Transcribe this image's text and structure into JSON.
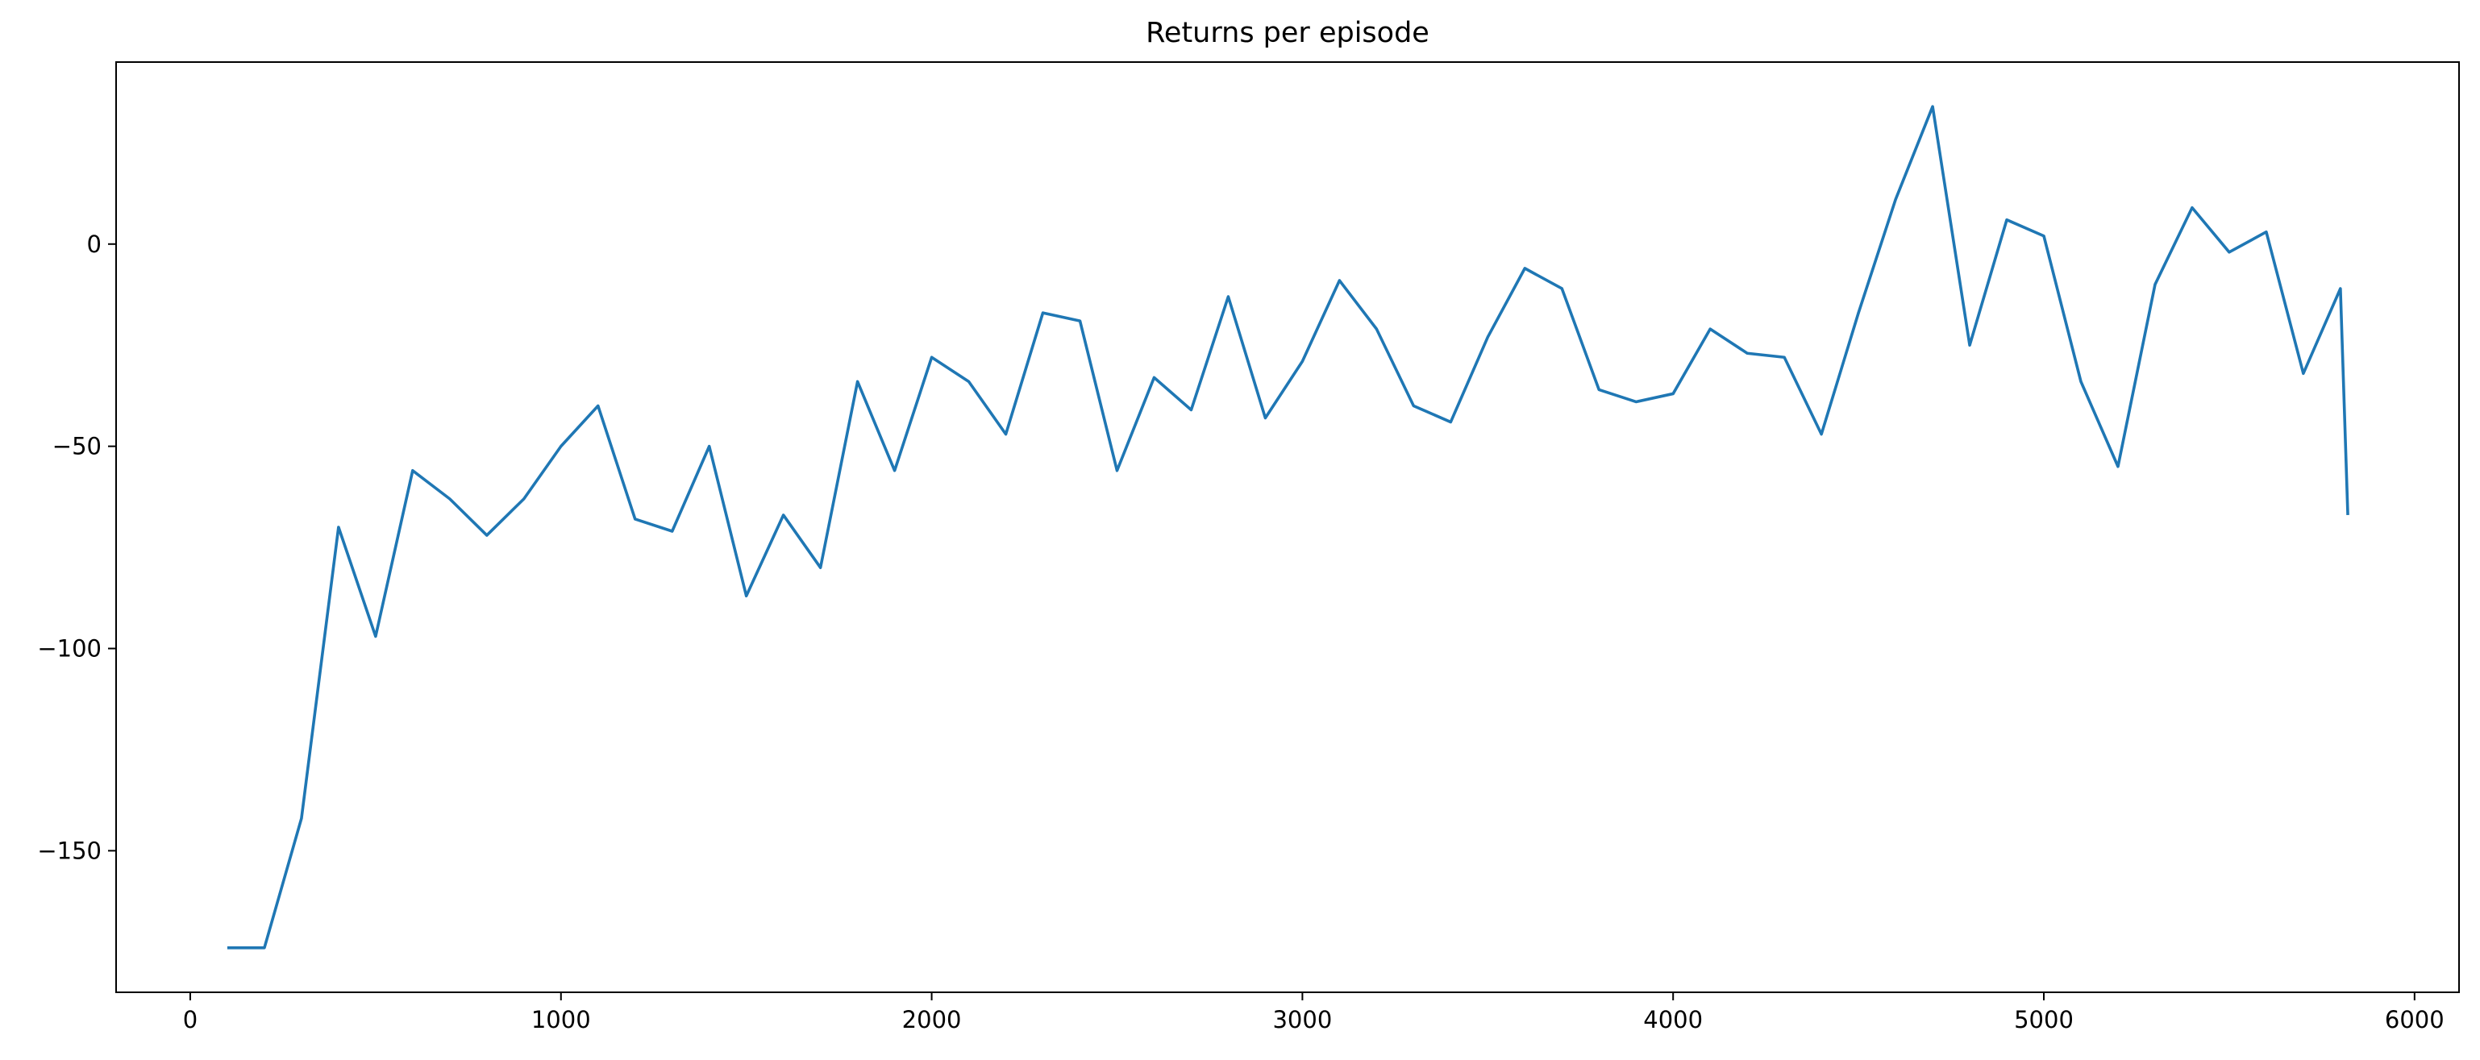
{
  "chart_data": {
    "type": "line",
    "title": "Returns per episode",
    "xlabel": "",
    "ylabel": "",
    "xlim": [
      -200,
      6120
    ],
    "ylim": [
      -185,
      45
    ],
    "x_ticks": [
      0,
      1000,
      2000,
      3000,
      4000,
      5000,
      6000
    ],
    "y_ticks": [
      -150,
      -100,
      -50,
      0
    ],
    "grid": false,
    "legend": "none",
    "series": [
      {
        "color": "#1f77b4",
        "x": [
          100,
          200,
          300,
          400,
          500,
          600,
          700,
          800,
          900,
          1000,
          1100,
          1200,
          1300,
          1400,
          1500,
          1600,
          1700,
          1800,
          1900,
          2000,
          2100,
          2200,
          2300,
          2400,
          2500,
          2600,
          2700,
          2800,
          2900,
          3000,
          3100,
          3200,
          3300,
          3400,
          3500,
          3600,
          3700,
          3800,
          3900,
          4000,
          4100,
          4200,
          4300,
          4400,
          4500,
          4600,
          4700,
          4800,
          4900,
          5000,
          5100,
          5200,
          5300,
          5400,
          5500,
          5600,
          5700,
          5800,
          5820
        ],
        "y": [
          -174,
          -174,
          -142,
          -70,
          -97,
          -56,
          -63,
          -72,
          -63,
          -50,
          -40,
          -68,
          -71,
          -50,
          -87,
          -67,
          -80,
          -34,
          -56,
          -28,
          -34,
          -47,
          -17,
          -19,
          -56,
          -33,
          -41,
          -13,
          -43,
          -29,
          -9,
          -21,
          -40,
          -44,
          -23,
          -6,
          -11,
          -36,
          -39,
          -37,
          -21,
          -27,
          -28,
          -47,
          -17,
          11,
          34,
          -25,
          6,
          2,
          -34,
          -55,
          -10,
          9,
          -2,
          3,
          -32,
          -11,
          -67
        ]
      }
    ]
  }
}
